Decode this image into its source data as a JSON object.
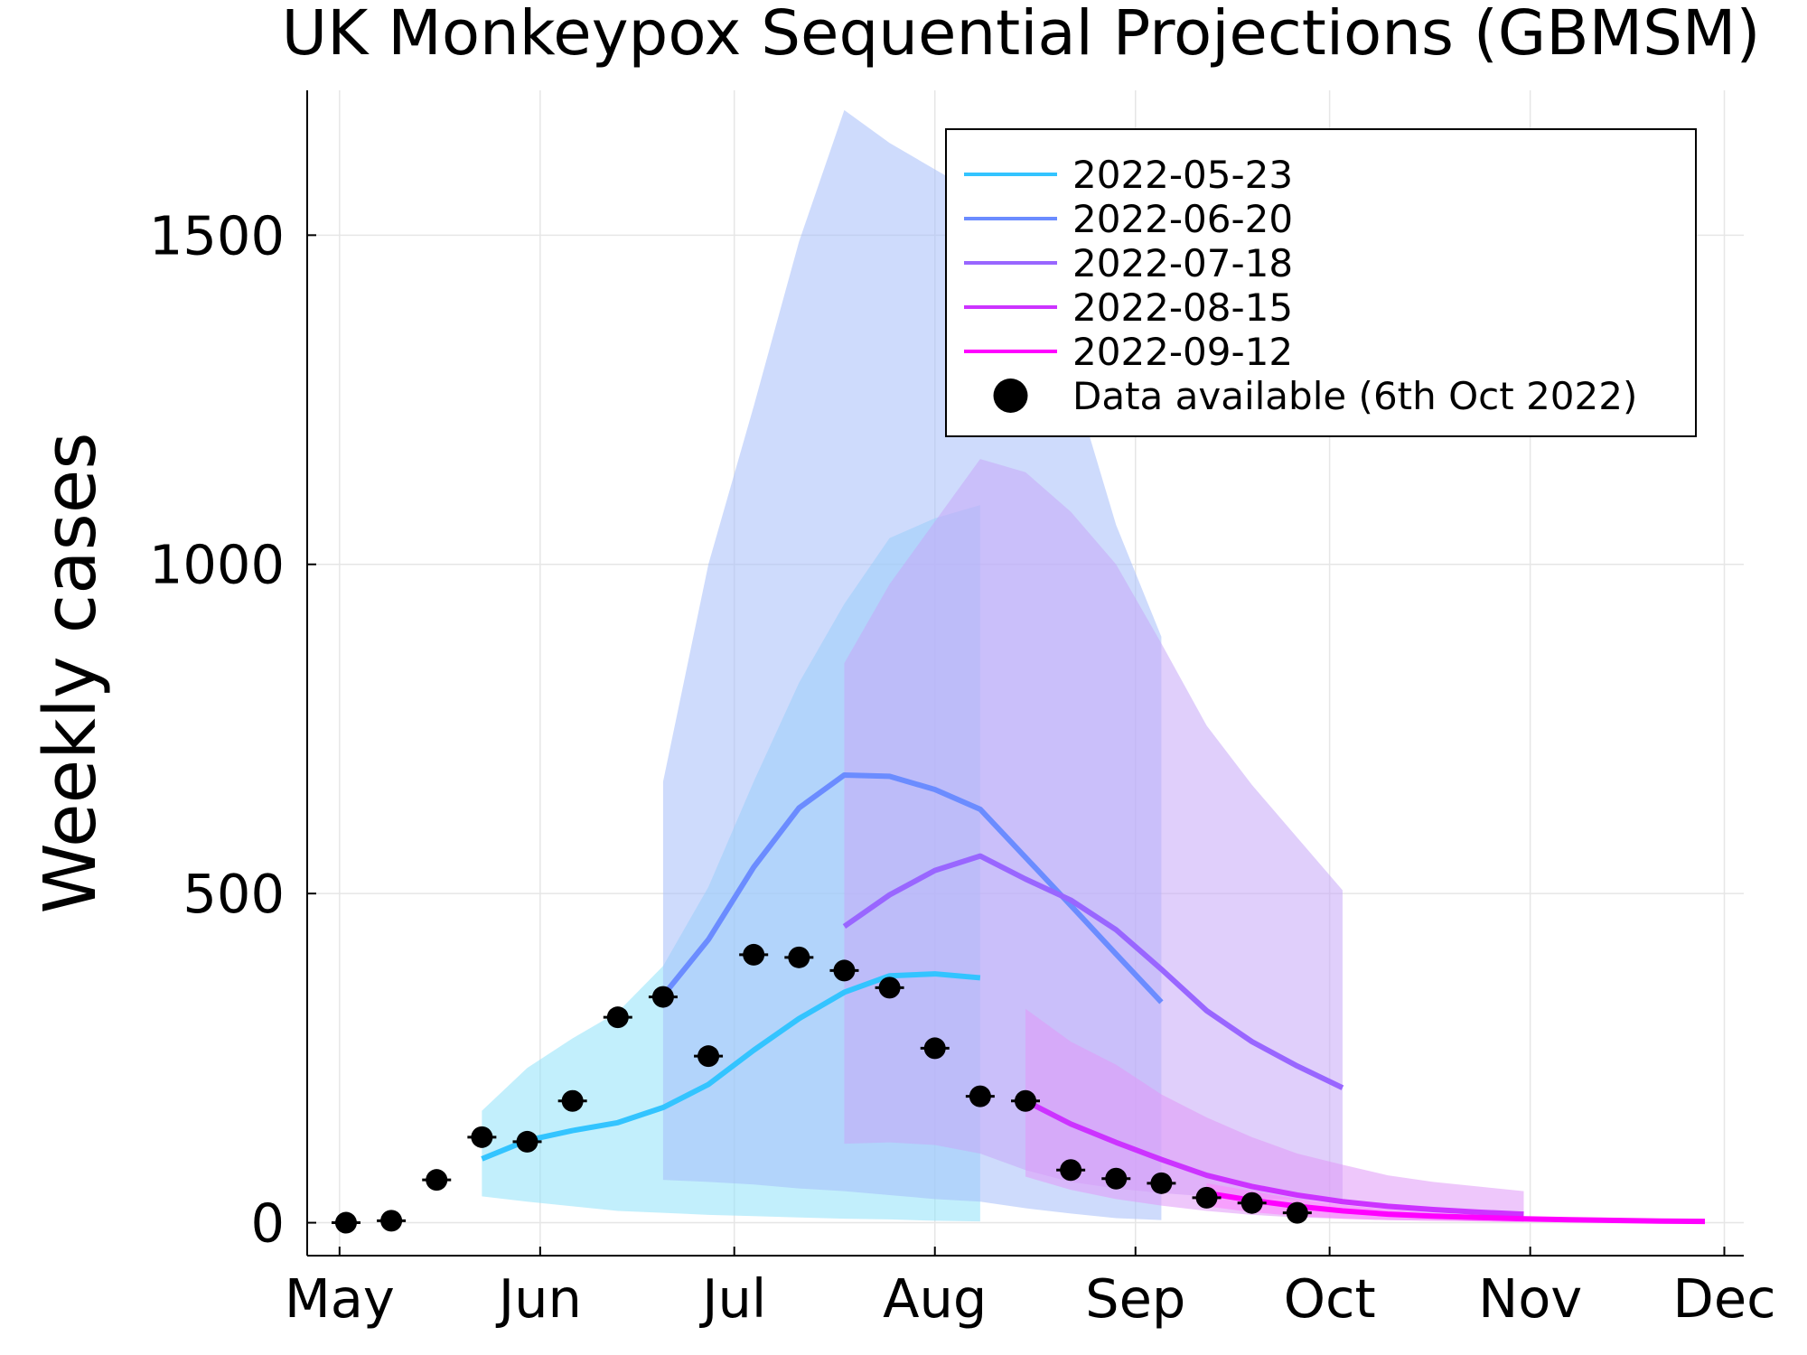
{
  "chart_data": {
    "type": "line",
    "title": "UK Monkeypox Sequential Projections (GBMSM)",
    "xlabel": "",
    "ylabel": "Weekly cases",
    "x_type": "date",
    "xlim": [
      "2022-04-26",
      "2022-12-04"
    ],
    "ylim": [
      -50,
      1720
    ],
    "x_ticks": [
      {
        "date": "2022-05-01",
        "label": "May"
      },
      {
        "date": "2022-06-01",
        "label": "Jun"
      },
      {
        "date": "2022-07-01",
        "label": "Jul"
      },
      {
        "date": "2022-08-01",
        "label": "Aug"
      },
      {
        "date": "2022-09-01",
        "label": "Sep"
      },
      {
        "date": "2022-10-01",
        "label": "Oct"
      },
      {
        "date": "2022-11-01",
        "label": "Nov"
      },
      {
        "date": "2022-12-01",
        "label": "Dec"
      }
    ],
    "y_ticks": [
      0,
      500,
      1000,
      1500
    ],
    "grid": true,
    "legend_position": "top-right",
    "series": [
      {
        "name": "2022-05-23",
        "color": "#33c4ff",
        "band_color": "#8fe1fa",
        "x": [
          "2022-05-23",
          "2022-05-30",
          "2022-06-06",
          "2022-06-13",
          "2022-06-20",
          "2022-06-27",
          "2022-07-04",
          "2022-07-11",
          "2022-07-18",
          "2022-07-25",
          "2022-08-01",
          "2022-08-08"
        ],
        "median": [
          97,
          125,
          140,
          152,
          175,
          210,
          262,
          310,
          350,
          375,
          378,
          372
        ],
        "lower": [
          40,
          32,
          25,
          18,
          15,
          12,
          10,
          8,
          6,
          5,
          3,
          2
        ],
        "upper": [
          170,
          235,
          280,
          320,
          390,
          510,
          670,
          820,
          940,
          1040,
          1070,
          1090
        ]
      },
      {
        "name": "2022-06-20",
        "color": "#6b8cff",
        "band_color": "#a6bdfa",
        "x": [
          "2022-06-20",
          "2022-06-27",
          "2022-07-04",
          "2022-07-11",
          "2022-07-18",
          "2022-07-25",
          "2022-08-01",
          "2022-08-08",
          "2022-08-15",
          "2022-08-22",
          "2022-08-29",
          "2022-09-05"
        ],
        "median": [
          345,
          430,
          540,
          630,
          680,
          678,
          658,
          628,
          555,
          482,
          408,
          335
        ],
        "lower": [
          65,
          62,
          58,
          52,
          48,
          42,
          36,
          32,
          22,
          14,
          7,
          4
        ],
        "upper": [
          670,
          1000,
          1240,
          1490,
          1690,
          1640,
          1600,
          1560,
          1390,
          1290,
          1060,
          890
        ]
      },
      {
        "name": "2022-07-18",
        "color": "#9966ff",
        "band_color": "#c6a8f7",
        "x": [
          "2022-07-18",
          "2022-07-25",
          "2022-08-01",
          "2022-08-08",
          "2022-08-15",
          "2022-08-22",
          "2022-08-29",
          "2022-09-05",
          "2022-09-12",
          "2022-09-19",
          "2022-09-26",
          "2022-10-03"
        ],
        "median": [
          450,
          498,
          535,
          557,
          522,
          490,
          445,
          385,
          322,
          275,
          238,
          205
        ],
        "lower": [
          120,
          122,
          118,
          105,
          80,
          62,
          52,
          45,
          40,
          37,
          35,
          32
        ],
        "upper": [
          850,
          970,
          1065,
          1160,
          1140,
          1080,
          1000,
          880,
          755,
          665,
          585,
          505
        ]
      },
      {
        "name": "2022-08-15",
        "color": "#cc33ff",
        "band_color": "#e099f7",
        "x": [
          "2022-08-15",
          "2022-08-22",
          "2022-08-29",
          "2022-09-05",
          "2022-09-12",
          "2022-09-19",
          "2022-09-26",
          "2022-10-03",
          "2022-10-10",
          "2022-10-17",
          "2022-10-24",
          "2022-10-31"
        ],
        "median": [
          185,
          150,
          122,
          96,
          72,
          55,
          42,
          32,
          25,
          20,
          16,
          13
        ],
        "lower": [
          70,
          50,
          36,
          26,
          18,
          12,
          8,
          6,
          4,
          3,
          2,
          1
        ],
        "upper": [
          325,
          275,
          240,
          195,
          160,
          130,
          105,
          88,
          72,
          62,
          55,
          48
        ]
      },
      {
        "name": "2022-09-12",
        "color": "#ff00ff",
        "band_color": "#ff80ff",
        "x": [
          "2022-09-12",
          "2022-09-19",
          "2022-09-26",
          "2022-10-03",
          "2022-10-10",
          "2022-10-17",
          "2022-10-24",
          "2022-10-31",
          "2022-11-07",
          "2022-11-14",
          "2022-11-21",
          "2022-11-28"
        ],
        "median": [
          45,
          34,
          25,
          18,
          13,
          10,
          8,
          6,
          4.5,
          3.5,
          2.5,
          2
        ],
        "lower": [
          25,
          16,
          10,
          6,
          4,
          3,
          2,
          1,
          0.5,
          0.3,
          0.2,
          0.1
        ],
        "upper": [
          60,
          48,
          36,
          27,
          20,
          15,
          11,
          8,
          6,
          5,
          4,
          3
        ]
      }
    ],
    "observed": {
      "name": "Data available (6th Oct 2022)",
      "color": "#000000",
      "x": [
        "2022-05-02",
        "2022-05-09",
        "2022-05-16",
        "2022-05-23",
        "2022-05-30",
        "2022-06-06",
        "2022-06-13",
        "2022-06-20",
        "2022-06-27",
        "2022-07-04",
        "2022-07-11",
        "2022-07-18",
        "2022-07-25",
        "2022-08-01",
        "2022-08-08",
        "2022-08-15",
        "2022-08-22",
        "2022-08-29",
        "2022-09-05",
        "2022-09-12",
        "2022-09-19",
        "2022-09-26"
      ],
      "values": [
        0,
        3,
        65,
        130,
        123,
        185,
        312,
        343,
        253,
        407,
        403,
        383,
        357,
        265,
        192,
        185,
        80,
        67,
        60,
        38,
        30,
        15
      ]
    }
  }
}
